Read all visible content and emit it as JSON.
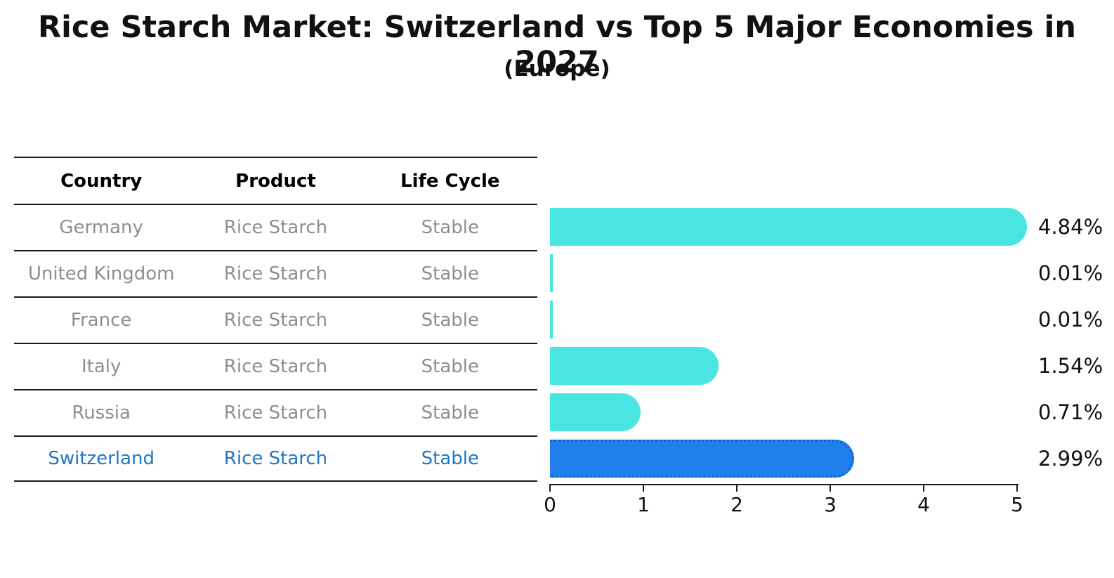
{
  "title": "Rice Starch Market: Switzerland vs Top 5 Major Economies in 2027",
  "subtitle": "(Europe)",
  "table": {
    "headers": {
      "country": "Country",
      "product": "Product",
      "life_cycle": "Life Cycle"
    },
    "rows": [
      {
        "country": "Germany",
        "product": "Rice Starch",
        "life_cycle": "Stable"
      },
      {
        "country": "United Kingdom",
        "product": "Rice Starch",
        "life_cycle": "Stable"
      },
      {
        "country": "France",
        "product": "Rice Starch",
        "life_cycle": "Stable"
      },
      {
        "country": "Italy",
        "product": "Rice Starch",
        "life_cycle": "Stable"
      },
      {
        "country": "Russia",
        "product": "Rice Starch",
        "life_cycle": "Stable"
      },
      {
        "country": "Switzerland",
        "product": "Rice Starch",
        "life_cycle": "Stable"
      }
    ]
  },
  "chart_data": {
    "type": "bar",
    "orientation": "horizontal",
    "title": "Rice Starch Market: Switzerland vs Top 5 Major Economies in 2027 (Europe)",
    "categories": [
      "Germany",
      "United Kingdom",
      "France",
      "Italy",
      "Russia",
      "Switzerland"
    ],
    "values": [
      4.84,
      0.01,
      0.01,
      1.54,
      0.71,
      2.99
    ],
    "value_labels": [
      "4.84%",
      "0.01%",
      "0.01%",
      "1.54%",
      "0.71%",
      "2.99%"
    ],
    "unit": "%",
    "xlim": [
      0,
      5
    ],
    "x_ticks": [
      0,
      1,
      2,
      3,
      4,
      5
    ],
    "tick_labels": [
      "0",
      "1",
      "2",
      "3",
      "4",
      "5"
    ],
    "grid": false,
    "legend": false,
    "bar_color": "#48E5E3",
    "highlight_color": "#1F80EB",
    "highlight_index": 5,
    "highlight_text_color": "#2176c4"
  }
}
